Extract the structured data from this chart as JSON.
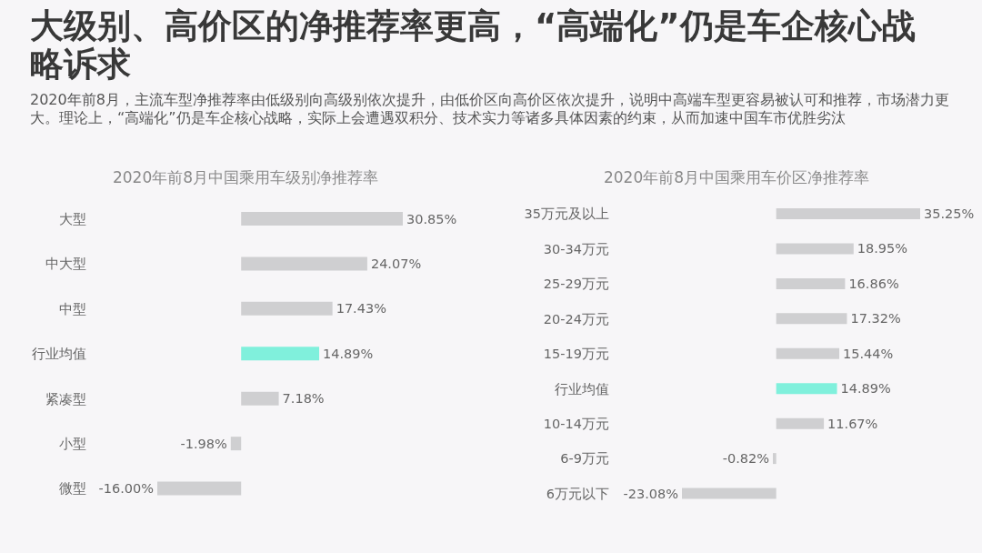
{
  "chart_data": [
    {
      "type": "other",
      "title": "大级别、高价区的净推荐率更高，“高端化”仍是车企核心战略诉求",
      "subtitle": "2020年前8月，主流车型净推荐率由低级别向高级别依次提升，由低价区向高价区依次提升，说明中高端车型更容易被认可和推荐，市场潜力更大。理论上，“高端化”仍是车企核心战略，实际上会遭遇双积分、技术实力等诸多具体因素的约束，从而加速中国车市优胜劣汰"
    },
    {
      "type": "bar",
      "orientation": "horizontal",
      "title": "2020年前8月中国乘用车级别净推荐率",
      "categories": [
        "大型",
        "中大型",
        "中型",
        "行业均值",
        "紧凑型",
        "小型",
        "微型"
      ],
      "values": [
        30.85,
        24.07,
        17.43,
        14.89,
        7.18,
        -1.98,
        -16.0
      ],
      "colors": [
        "#cfcfd1",
        "#cfcfd1",
        "#cfcfd1",
        "#80f0dc",
        "#cfcfd1",
        "#cfcfd1",
        "#cfcfd1"
      ],
      "value_labels": [
        "30.85%",
        "24.07%",
        "17.43%",
        "14.89%",
        "7.18%",
        "-1.98%",
        "-16.00%"
      ],
      "tick_labels": "y"
    },
    {
      "type": "bar",
      "orientation": "horizontal",
      "title": "2020年前8月中国乘用车价区净推荐率",
      "categories": [
        "35万元及以上",
        "30-34万元",
        "25-29万元",
        "20-24万元",
        "15-19万元",
        "行业均值",
        "10-14万元",
        "6-9万元",
        "6万元以下"
      ],
      "values": [
        35.25,
        18.95,
        16.86,
        17.32,
        15.44,
        14.89,
        11.67,
        -0.82,
        -23.08
      ],
      "colors": [
        "#cfcfd1",
        "#cfcfd1",
        "#cfcfd1",
        "#cfcfd1",
        "#cfcfd1",
        "#80f0dc",
        "#cfcfd1",
        "#cfcfd1",
        "#cfcfd1"
      ],
      "value_labels": [
        "35.25%",
        "18.95%",
        "16.86%",
        "17.32%",
        "15.44%",
        "14.89%",
        "11.67%",
        "-0.82%",
        "-23.08%"
      ],
      "tick_labels": "y"
    }
  ]
}
